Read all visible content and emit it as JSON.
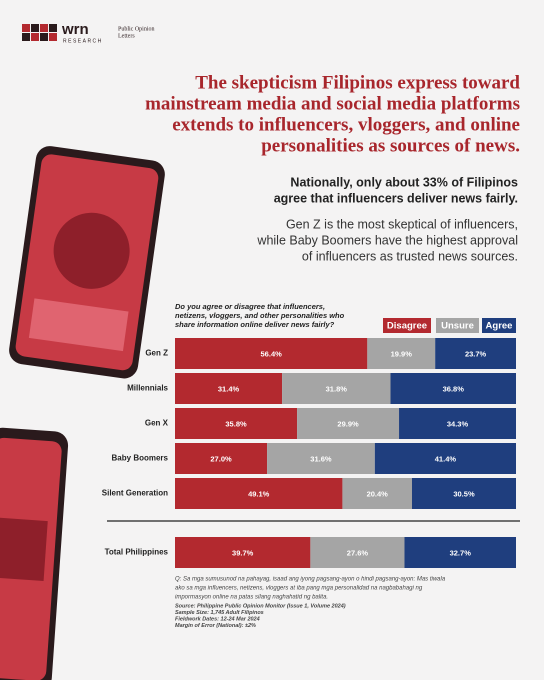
{
  "brand": {
    "name": "wrn",
    "tag": "RESEARCH",
    "partner": [
      "Public Opinion",
      "Letters"
    ]
  },
  "headline": [
    "The skepticism Filipinos express toward",
    "mainstream media and social media platforms",
    "extends to influencers, vloggers, and online",
    "personalities as sources of news."
  ],
  "highlight": [
    "Nationally, only about 33% of Filipinos",
    "agree that influencers deliver news fairly."
  ],
  "summary": [
    "Gen Z is the most skeptical of influencers,",
    "while Baby Boomers have the highest approval",
    "of influencers as trusted news sources."
  ],
  "chart_data": {
    "type": "stacked-bar",
    "title": [
      "Do you agree or disagree that influencers,",
      "netizens, vloggers, and other personalities who",
      "share information online deliver news fairly?"
    ],
    "categories": [
      "Gen Z",
      "Millennials",
      "Gen X",
      "Baby Boomers",
      "Silent Generation",
      "Total Philippines"
    ],
    "series": [
      {
        "name": "Disagree",
        "color": "#b3292f",
        "values": [
          56.4,
          31.4,
          35.8,
          27.0,
          49.1,
          39.7
        ],
        "value_labels": [
          "56.4%",
          "31.4%",
          "35.8%",
          "27.0%",
          "49.1%",
          "39.7%"
        ]
      },
      {
        "name": "Unsure",
        "color": "#a5a5a5",
        "values": [
          19.9,
          31.8,
          29.9,
          31.6,
          20.4,
          27.6
        ],
        "value_labels": [
          "19.9%",
          "31.8%",
          "29.9%",
          "31.6%",
          "20.4%",
          "27.6%"
        ]
      },
      {
        "name": "Agree",
        "color": "#1f3e7e",
        "values": [
          23.7,
          36.8,
          34.3,
          41.4,
          30.5,
          32.7
        ],
        "value_labels": [
          "23.7%",
          "36.8%",
          "34.3%",
          "41.4%",
          "30.5%",
          "32.7%"
        ]
      }
    ]
  },
  "question_note": [
    "Q: Sa mga sumusunod na pahayag, isaad ang iyong pagsang-ayon o hindi pagsang-ayon: Mas tiwala",
    "ako sa mga influencers, netizens, vloggers at iba pang mga personalidad na nagbabahagi ng",
    "impormasyon online na patas silang naghahatid ng balita."
  ],
  "sources": [
    "Source: Philippine Public Opinion Monitor (Issue 1, Volume 2024)",
    "Sample Size: 1,745 Adult Filipinos",
    "Fieldwork Dates: 12-24 Mar 2024",
    "Margin of Error (National): ±2%"
  ]
}
